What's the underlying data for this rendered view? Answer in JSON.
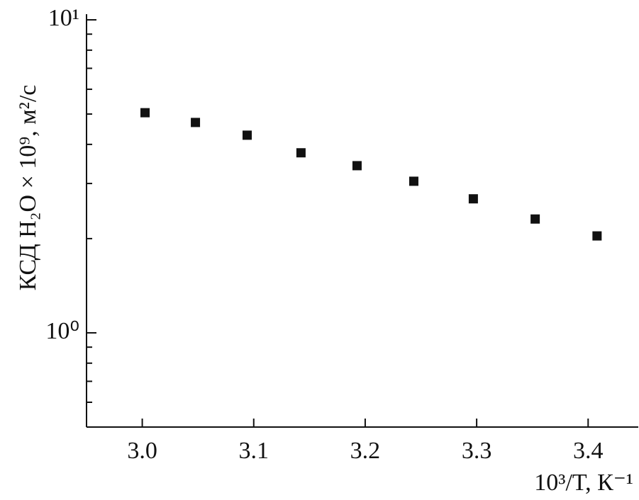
{
  "chart_data": {
    "type": "scatter",
    "x_label": "10³/T, К⁻¹",
    "y_label": "КСД H₂O × 10⁹, м²/с",
    "x": [
      3.0025,
      3.0477,
      3.0941,
      3.1424,
      3.1927,
      3.2436,
      3.297,
      3.3525,
      3.408
    ],
    "values": [
      5.05,
      4.7,
      4.28,
      3.76,
      3.42,
      3.05,
      2.68,
      2.31,
      2.04
    ],
    "color": "#111111",
    "xlim": [
      2.95,
      3.445
    ],
    "xticks": [
      {
        "value": 3.0,
        "label": "3.0"
      },
      3.1,
      3.2,
      3.3,
      3.4
    ],
    "ylim": [
      0.5,
      10
    ],
    "yscale": "log",
    "yticks": [
      {
        "value": 1,
        "label": "10⁰"
      },
      {
        "value": 10,
        "label": "10¹"
      }
    ],
    "yminor_ticks": [
      0.6,
      0.7,
      0.8,
      0.9,
      2,
      3,
      4,
      5,
      6,
      7,
      8,
      9
    ]
  }
}
